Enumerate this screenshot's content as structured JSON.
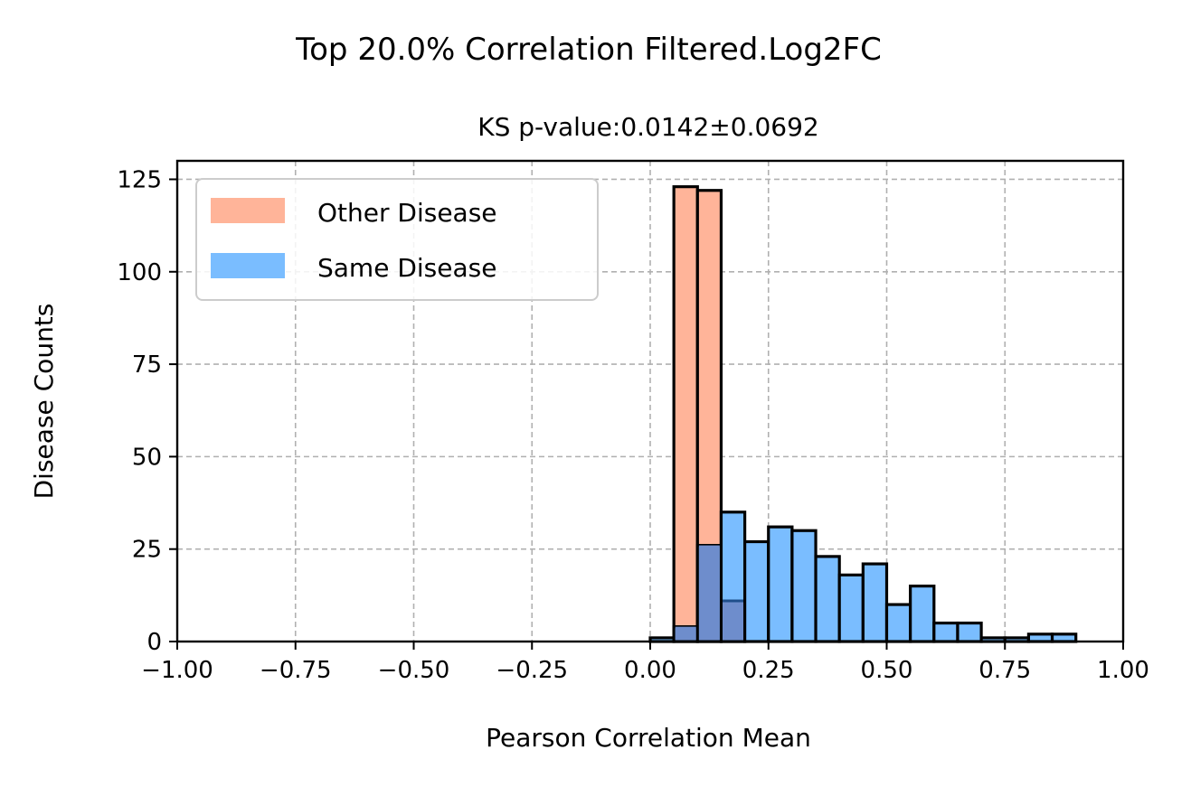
{
  "chart_data": {
    "type": "bar",
    "suptitle": "Top 20.0% Correlation Filtered.Log2FC",
    "title": "KS p-value:0.0142±0.0692",
    "xlabel": "Pearson Correlation Mean",
    "ylabel": "Disease Counts",
    "xlim": [
      -1.0,
      1.0
    ],
    "ylim": [
      0,
      130
    ],
    "xticks": [
      "−1.00",
      "−0.75",
      "−0.50",
      "−0.25",
      "0.00",
      "0.25",
      "0.50",
      "0.75",
      "1.00"
    ],
    "xtick_values": [
      -1.0,
      -0.75,
      -0.5,
      -0.25,
      0.0,
      0.25,
      0.5,
      0.75,
      1.0
    ],
    "yticks": [
      "0",
      "25",
      "50",
      "75",
      "100",
      "125"
    ],
    "ytick_values": [
      0,
      25,
      50,
      75,
      100,
      125
    ],
    "grid": true,
    "legend_position": "top-left",
    "bin_width": 0.05,
    "series": [
      {
        "name": "Other Disease",
        "color": "#FFB499",
        "bins": [
          {
            "x0": 0.05,
            "x1": 0.1,
            "count": 123
          },
          {
            "x0": 0.1,
            "x1": 0.15,
            "count": 122
          },
          {
            "x0": 0.15,
            "x1": 0.2,
            "count": 11
          }
        ]
      },
      {
        "name": "Same Disease",
        "color": "#7ABDFF",
        "bins": [
          {
            "x0": 0.0,
            "x1": 0.05,
            "count": 1
          },
          {
            "x0": 0.05,
            "x1": 0.1,
            "count": 4
          },
          {
            "x0": 0.1,
            "x1": 0.15,
            "count": 26
          },
          {
            "x0": 0.15,
            "x1": 0.2,
            "count": 35
          },
          {
            "x0": 0.2,
            "x1": 0.25,
            "count": 27
          },
          {
            "x0": 0.25,
            "x1": 0.3,
            "count": 31
          },
          {
            "x0": 0.3,
            "x1": 0.35,
            "count": 30
          },
          {
            "x0": 0.35,
            "x1": 0.4,
            "count": 23
          },
          {
            "x0": 0.4,
            "x1": 0.45,
            "count": 18
          },
          {
            "x0": 0.45,
            "x1": 0.5,
            "count": 21
          },
          {
            "x0": 0.5,
            "x1": 0.55,
            "count": 10
          },
          {
            "x0": 0.55,
            "x1": 0.6,
            "count": 15
          },
          {
            "x0": 0.6,
            "x1": 0.65,
            "count": 5
          },
          {
            "x0": 0.65,
            "x1": 0.7,
            "count": 5
          },
          {
            "x0": 0.7,
            "x1": 0.75,
            "count": 1
          },
          {
            "x0": 0.75,
            "x1": 0.8,
            "count": 1
          },
          {
            "x0": 0.8,
            "x1": 0.85,
            "count": 2
          },
          {
            "x0": 0.85,
            "x1": 0.9,
            "count": 2
          }
        ]
      }
    ],
    "overlap_color": "#6E8DCC"
  }
}
